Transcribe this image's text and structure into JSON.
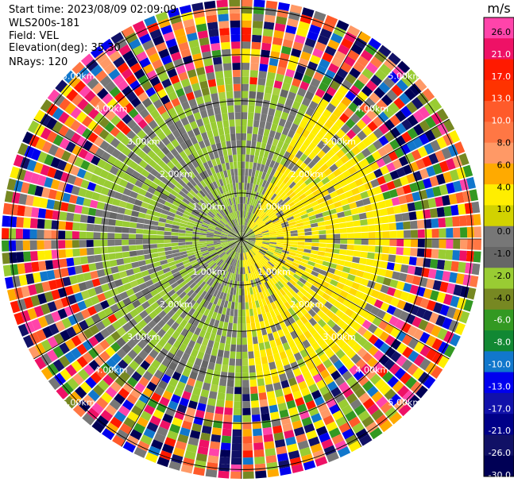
{
  "header": {
    "start_time": "Start time: 2023/08/09 02:09:09",
    "instrument": "WLS200s-181",
    "field": "Field: VEL",
    "elevation": "Elevation(deg): 35.30",
    "nrays": "NRays: 120"
  },
  "chart_data": {
    "type": "heatmap",
    "projection": "polar-ppi",
    "field": "VEL",
    "n_rays": 120,
    "max_range_km": 5.2,
    "range_rings_km": [
      1,
      2,
      3,
      4,
      5
    ],
    "range_ring_labels": [
      "1.00km",
      "2.00km",
      "3.00km",
      "4.00km",
      "5.00km"
    ],
    "grid": true,
    "colorbar": {
      "unit": "m/s",
      "placement": "right",
      "tick_labels": [
        "26.0",
        "21.0",
        "17.0",
        "13.0",
        "10.0",
        "8.0",
        "6.0",
        "4.0",
        "1.0",
        "0.0",
        "-1.0",
        "-2.0",
        "-4.0",
        "-6.0",
        "-8.0",
        "-10.0",
        "-13.0",
        "-17.0",
        "-21.0",
        "-26.0",
        "-30.0"
      ],
      "colors": [
        "#ff44aa",
        "#ee1166",
        "#ff1a00",
        "#ff3300",
        "#ff5a2a",
        "#ff7744",
        "#ff9966",
        "#ffaa00",
        "#ffee00",
        "#d2d200",
        "#777777",
        "#666666",
        "#99cc33",
        "#778822",
        "#339922",
        "#118833",
        "#1177cc",
        "#0000ee",
        "#1111aa",
        "#000088",
        "#111166",
        "#000055"
      ]
    },
    "regions": [
      {
        "description": "near-range negative velocities (receding)",
        "azimuth_deg": [
          200,
          360
        ],
        "range_km": [
          0,
          3.6
        ],
        "value_range_ms": [
          -2,
          -1
        ]
      },
      {
        "description": "near-range negative velocities (north)",
        "azimuth_deg": [
          0,
          20
        ],
        "range_km": [
          0,
          3.6
        ],
        "value_range_ms": [
          -2,
          -1
        ]
      },
      {
        "description": "positive velocities (approaching)",
        "azimuth_deg": [
          20,
          170
        ],
        "range_km": [
          0.4,
          3.6
        ],
        "value_range_ms": [
          1,
          6
        ]
      },
      {
        "description": "mixed/unreliable far range",
        "azimuth_deg": [
          0,
          360
        ],
        "range_km": [
          3.6,
          5.2
        ],
        "value_range_ms": [
          -30,
          26
        ]
      }
    ]
  }
}
